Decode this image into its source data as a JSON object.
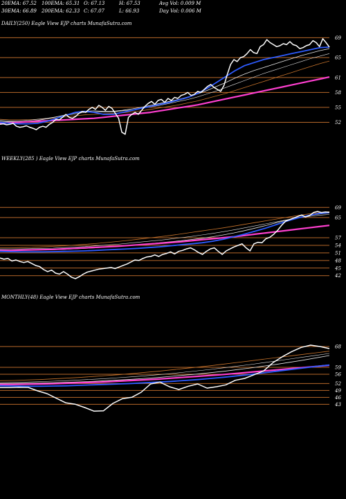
{
  "header": {
    "row1": [
      "20EMA: 67.52",
      "100EMA: 65.31",
      "O: 67.13",
      "H: 67.53",
      "Avg Vol: 0.009 M"
    ],
    "row2": [
      "30EMA: 66.89",
      "200EMA: 62.33",
      "C: 67.07",
      "L: 66.93",
      "Day Vol: 0.006  M"
    ]
  },
  "colors": {
    "background": "#000000",
    "price": "#ffffff",
    "level_line": "#b8682a",
    "ema_fast": "#2d5bff",
    "ema_slow": "#ff3fd0",
    "ema_mid_light": "#e8e8e8",
    "ema_mid_orange": "#c8742c"
  },
  "chart_data": [
    {
      "type": "line",
      "title": "DAILY(250) Eagle  View  EJP charts MunafaSutra.com",
      "tick_labels": [
        "69",
        "65",
        "61",
        "58",
        "55",
        "52"
      ],
      "ylim": [
        49,
        71
      ],
      "series": [
        {
          "role": "price",
          "values": [
            51.6,
            51.7,
            51.5,
            51.6,
            51.8,
            51.2,
            51.0,
            51.1,
            51.3,
            51.0,
            50.8,
            50.5,
            51.0,
            51.2,
            51.0,
            51.6,
            52.0,
            52.6,
            52.5,
            53.0,
            53.6,
            53.0,
            52.8,
            53.2,
            53.8,
            54.2,
            54.0,
            54.6,
            55.0,
            54.6,
            55.4,
            55.0,
            54.4,
            55.2,
            54.8,
            53.8,
            52.8,
            50.0,
            49.6,
            53.0,
            53.6,
            54.0,
            53.6,
            54.4,
            55.2,
            55.8,
            56.2,
            55.6,
            56.4,
            56.6,
            56.0,
            56.8,
            56.4,
            57.0,
            56.8,
            57.4,
            57.6,
            58.0,
            57.4,
            57.6,
            58.2,
            58.0,
            58.6,
            59.2,
            59.6,
            59.0,
            58.6,
            58.2,
            59.4,
            61.6,
            63.6,
            64.6,
            64.2,
            65.0,
            65.2,
            65.8,
            66.6,
            66.0,
            65.8,
            67.2,
            67.6,
            68.6,
            68.0,
            67.6,
            67.2,
            67.4,
            67.8,
            67.6,
            68.2,
            67.6,
            67.4,
            66.8,
            67.0,
            67.4,
            67.6,
            68.4,
            68.0,
            67.2,
            68.8,
            68.0,
            67.1
          ]
        },
        {
          "role": "ema-blue",
          "values": [
            52.0,
            51.8,
            51.7,
            51.7,
            51.8,
            52.2,
            52.8,
            53.4,
            54.0,
            54.2,
            54.0,
            53.6,
            53.6,
            54.0,
            54.4,
            54.8,
            55.2,
            55.6,
            56.0,
            56.5,
            57.0,
            57.8,
            58.8,
            60.0,
            61.2,
            62.4,
            63.4,
            64.0,
            64.6,
            65.0,
            65.4,
            65.8,
            66.2,
            66.6,
            67.0,
            67.1
          ]
        },
        {
          "role": "ema-light1",
          "values": [
            52.2,
            52.1,
            52.1,
            52.2,
            52.4,
            52.7,
            53.1,
            53.5,
            53.9,
            54.2,
            54.3,
            54.2,
            54.2,
            54.4,
            54.7,
            55.0,
            55.4,
            55.8,
            56.2,
            56.6,
            57.1,
            57.7,
            58.4,
            59.2,
            60.0,
            60.9,
            61.7,
            62.4,
            63.0,
            63.6,
            64.2,
            64.8,
            65.4,
            65.9,
            66.4,
            66.8
          ]
        },
        {
          "role": "ema-light2",
          "values": [
            52.4,
            52.3,
            52.3,
            52.4,
            52.6,
            52.8,
            53.1,
            53.4,
            53.7,
            54.0,
            54.1,
            54.1,
            54.1,
            54.3,
            54.5,
            54.8,
            55.1,
            55.4,
            55.8,
            56.2,
            56.6,
            57.1,
            57.7,
            58.3,
            59.0,
            59.7,
            60.4,
            61.1,
            61.8,
            62.4,
            63.0,
            63.6,
            64.2,
            64.8,
            65.3,
            65.8
          ]
        },
        {
          "role": "ema-orange",
          "values": [
            52.6,
            52.5,
            52.5,
            52.5,
            52.6,
            52.7,
            52.9,
            53.1,
            53.3,
            53.5,
            53.6,
            53.7,
            53.8,
            53.9,
            54.1,
            54.3,
            54.6,
            54.9,
            55.2,
            55.5,
            55.9,
            56.3,
            56.8,
            57.3,
            57.8,
            58.4,
            59.0,
            59.6,
            60.2,
            60.8,
            61.4,
            62.0,
            62.6,
            63.2,
            63.8,
            64.3
          ]
        },
        {
          "role": "ema-magenta",
          "values": [
            51.8,
            51.9,
            52.0,
            52.1,
            52.2,
            52.3,
            52.4,
            52.5,
            52.6,
            52.7,
            52.8,
            53.0,
            53.2,
            53.4,
            53.6,
            53.8,
            54.0,
            54.3,
            54.6,
            54.9,
            55.2,
            55.5,
            55.9,
            56.3,
            56.7,
            57.1,
            57.5,
            57.9,
            58.3,
            58.7,
            59.1,
            59.5,
            59.9,
            60.3,
            60.7,
            61.1
          ]
        }
      ]
    },
    {
      "type": "line",
      "title": "WEEKLY(285                          ) Eagle  View  EJP charts MunafaSutra.com",
      "tick_labels": [
        "69",
        "65",
        "57",
        "54",
        "51",
        "48",
        "45",
        "42"
      ],
      "ylim": [
        40,
        71
      ],
      "series": [
        {
          "role": "price",
          "values": [
            49.0,
            48.5,
            48.8,
            47.8,
            48.2,
            47.6,
            47.2,
            47.6,
            46.8,
            46.0,
            45.6,
            44.4,
            43.6,
            44.2,
            43.0,
            42.6,
            43.6,
            42.6,
            41.4,
            40.8,
            41.6,
            42.6,
            43.4,
            43.8,
            44.2,
            44.6,
            44.8,
            45.0,
            45.2,
            44.8,
            45.4,
            46.0,
            46.6,
            47.4,
            48.2,
            48.0,
            48.8,
            49.4,
            49.6,
            50.2,
            49.6,
            50.4,
            50.8,
            51.4,
            50.6,
            51.6,
            52.0,
            52.6,
            53.0,
            52.2,
            51.2,
            50.4,
            51.6,
            52.6,
            53.0,
            51.6,
            50.4,
            51.8,
            52.6,
            53.4,
            54.0,
            54.6,
            53.0,
            51.8,
            54.6,
            55.2,
            55.0,
            56.6,
            57.2,
            58.4,
            60.0,
            62.0,
            63.6,
            64.2,
            64.8,
            65.4,
            66.0,
            65.2,
            65.8,
            67.0,
            67.4,
            67.0,
            67.2,
            67.1
          ]
        },
        {
          "role": "ema-blue",
          "values": [
            51.6,
            51.5,
            51.4,
            51.4,
            51.4,
            51.5,
            51.6,
            51.7,
            51.8,
            52.0,
            52.2,
            52.4,
            52.6,
            52.8,
            53.1,
            53.4,
            53.8,
            54.2,
            54.6,
            55.0,
            55.6,
            56.4,
            57.4,
            58.4,
            59.6,
            60.8,
            62.2,
            63.6,
            64.8,
            65.8,
            66.6,
            67.0
          ]
        },
        {
          "role": "ema-light1",
          "values": [
            52.2,
            52.1,
            52.1,
            52.1,
            52.2,
            52.3,
            52.4,
            52.6,
            52.8,
            53.0,
            53.3,
            53.6,
            53.9,
            54.2,
            54.6,
            55.0,
            55.4,
            55.8,
            56.3,
            56.8,
            57.4,
            58.1,
            58.9,
            59.8,
            60.8,
            61.8,
            62.9,
            64.0,
            65.0,
            65.8,
            66.4,
            66.8
          ]
        },
        {
          "role": "ema-light2",
          "values": [
            52.6,
            52.6,
            52.6,
            52.7,
            52.8,
            52.9,
            53.1,
            53.3,
            53.5,
            53.8,
            54.1,
            54.4,
            54.8,
            55.2,
            55.6,
            56.0,
            56.5,
            57.0,
            57.5,
            58.1,
            58.7,
            59.4,
            60.1,
            60.9,
            61.7,
            62.5,
            63.3,
            64.1,
            64.8,
            65.4,
            65.9,
            66.2
          ]
        },
        {
          "role": "ema-orange",
          "values": [
            53.0,
            53.0,
            53.1,
            53.2,
            53.4,
            53.6,
            53.8,
            54.1,
            54.4,
            54.7,
            55.1,
            55.5,
            55.9,
            56.4,
            56.9,
            57.4,
            57.9,
            58.5,
            59.1,
            59.7,
            60.3,
            60.9,
            61.6,
            62.3,
            63.0,
            63.7,
            64.4,
            65.1,
            65.8,
            66.4,
            66.9,
            67.3
          ]
        },
        {
          "role": "ema-magenta",
          "values": [
            52.0,
            52.0,
            52.1,
            52.2,
            52.3,
            52.4,
            52.6,
            52.8,
            53.0,
            53.2,
            53.4,
            53.6,
            53.9,
            54.2,
            54.5,
            54.8,
            55.1,
            55.4,
            55.8,
            56.2,
            56.6,
            57.0,
            57.4,
            57.9,
            58.4,
            58.9,
            59.4,
            59.9,
            60.4,
            60.9,
            61.4,
            61.9
          ]
        }
      ]
    },
    {
      "type": "line",
      "title": "MONTHLY(48) Eagle  View  EJP charts MunafaSutra.com",
      "tick_labels": [
        "68",
        "59",
        "56",
        "52",
        "49",
        "46",
        "43"
      ],
      "ylim": [
        38,
        71
      ],
      "series": [
        {
          "role": "price",
          "values": [
            50.2,
            50.2,
            50.4,
            50.3,
            48.8,
            47.6,
            45.6,
            43.6,
            43.0,
            41.6,
            40.0,
            40.2,
            43.4,
            45.4,
            46.0,
            48.2,
            51.8,
            52.6,
            50.6,
            49.4,
            50.8,
            51.8,
            50.0,
            50.6,
            51.4,
            53.4,
            54.2,
            55.8,
            57.4,
            61.0,
            63.6,
            65.8,
            67.6,
            68.6,
            68.0,
            67.1
          ]
        },
        {
          "role": "ema-blue",
          "values": [
            51.0,
            50.9,
            50.8,
            50.8,
            50.9,
            51.0,
            51.2,
            51.4,
            51.6,
            51.8,
            52.0,
            52.3,
            52.6,
            52.9,
            53.3,
            53.7,
            54.2,
            54.7,
            55.3,
            55.9,
            56.6,
            57.3,
            58.0,
            58.7,
            59.4,
            60.0
          ]
        },
        {
          "role": "ema-light1",
          "values": [
            52.0,
            52.0,
            52.1,
            52.2,
            52.3,
            52.5,
            52.7,
            52.9,
            53.2,
            53.5,
            53.8,
            54.2,
            54.6,
            55.1,
            55.6,
            56.1,
            56.7,
            57.3,
            58.0,
            58.7,
            59.5,
            60.3,
            61.2,
            62.1,
            63.1,
            64.1
          ]
        },
        {
          "role": "ema-light2",
          "values": [
            52.4,
            52.5,
            52.6,
            52.8,
            53.0,
            53.2,
            53.5,
            53.8,
            54.1,
            54.5,
            54.9,
            55.3,
            55.8,
            56.3,
            56.9,
            57.5,
            58.1,
            58.8,
            59.5,
            60.2,
            61.0,
            61.8,
            62.6,
            63.4,
            64.2,
            65.0
          ]
        },
        {
          "role": "ema-orange",
          "values": [
            53.2,
            53.3,
            53.5,
            53.7,
            54.0,
            54.3,
            54.6,
            55.0,
            55.4,
            55.8,
            56.3,
            56.8,
            57.3,
            57.9,
            58.5,
            59.1,
            59.7,
            60.4,
            61.1,
            61.8,
            62.5,
            63.2,
            63.9,
            64.6,
            65.3,
            66.0
          ]
        },
        {
          "role": "ema-magenta",
          "values": [
            51.6,
            51.6,
            51.7,
            51.8,
            51.9,
            52.1,
            52.3,
            52.5,
            52.7,
            53.0,
            53.3,
            53.6,
            53.9,
            54.3,
            54.7,
            55.1,
            55.5,
            55.9,
            56.4,
            56.9,
            57.4,
            57.9,
            58.4,
            58.9,
            59.4,
            59.9
          ]
        }
      ]
    }
  ]
}
